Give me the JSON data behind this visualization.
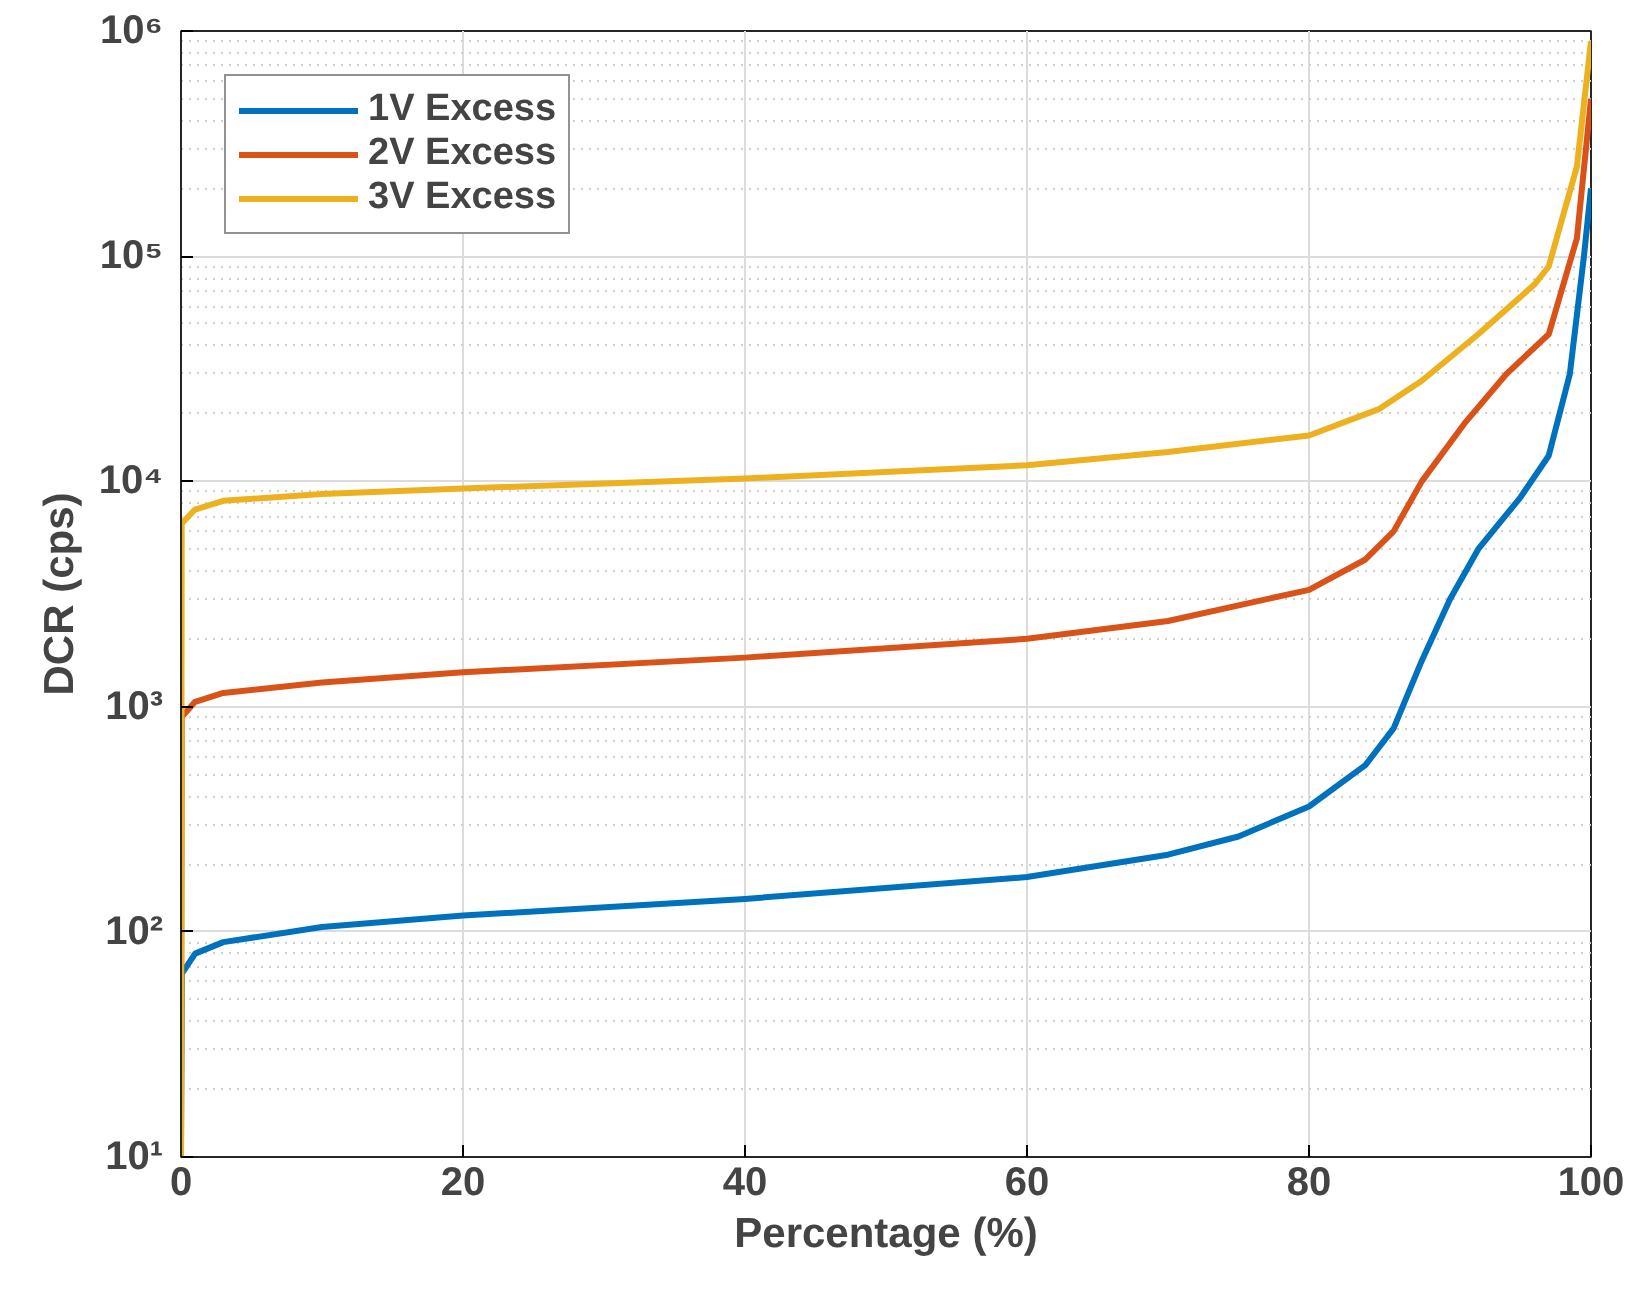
{
  "chart_data": {
    "type": "line",
    "xlabel": "Percentage (%)",
    "ylabel": "DCR (cps)",
    "log": "y",
    "grid": true,
    "legend": "top left",
    "xlim": [
      0,
      100
    ],
    "ylim": [
      10,
      1000000
    ],
    "xticks": [
      0,
      20,
      40,
      60,
      80,
      100
    ],
    "yticks": [
      {
        "value": 10,
        "label": "10¹"
      },
      {
        "value": 100,
        "label": "10²"
      },
      {
        "value": 1000,
        "label": "10³"
      },
      {
        "value": 10000,
        "label": "10⁴"
      },
      {
        "value": 100000,
        "label": "10⁵"
      },
      {
        "value": 1000000,
        "label": "10⁶"
      }
    ],
    "series": [
      {
        "name": "1V Excess",
        "color": "#0072bd",
        "x": [
          0,
          0.05,
          1,
          3,
          10,
          20,
          40,
          60,
          70,
          75,
          80,
          84,
          86,
          88,
          90,
          92,
          95,
          97,
          98.5,
          99.5,
          100
        ],
        "values": [
          10,
          65,
          80,
          90,
          105,
          118,
          140,
          175,
          220,
          265,
          360,
          550,
          800,
          1600,
          3000,
          5000,
          8500,
          13000,
          30000,
          100000,
          200000
        ]
      },
      {
        "name": "2V Excess",
        "color": "#d95319",
        "x": [
          0,
          0.05,
          1,
          3,
          10,
          20,
          40,
          60,
          70,
          80,
          84,
          86,
          88,
          91,
          94,
          97,
          99,
          100
        ],
        "values": [
          10,
          900,
          1050,
          1150,
          1280,
          1420,
          1650,
          2000,
          2400,
          3300,
          4500,
          6000,
          10000,
          18000,
          30000,
          45000,
          120000,
          500000
        ]
      },
      {
        "name": "3V Excess",
        "color": "#edb120",
        "x": [
          0,
          0.05,
          1,
          3,
          10,
          20,
          40,
          60,
          70,
          80,
          85,
          88,
          92,
          96,
          97,
          99,
          100
        ],
        "values": [
          10,
          6500,
          7500,
          8200,
          8800,
          9300,
          10300,
          11800,
          13500,
          16000,
          21000,
          28000,
          45000,
          75000,
          90000,
          250000,
          900000
        ]
      }
    ]
  }
}
